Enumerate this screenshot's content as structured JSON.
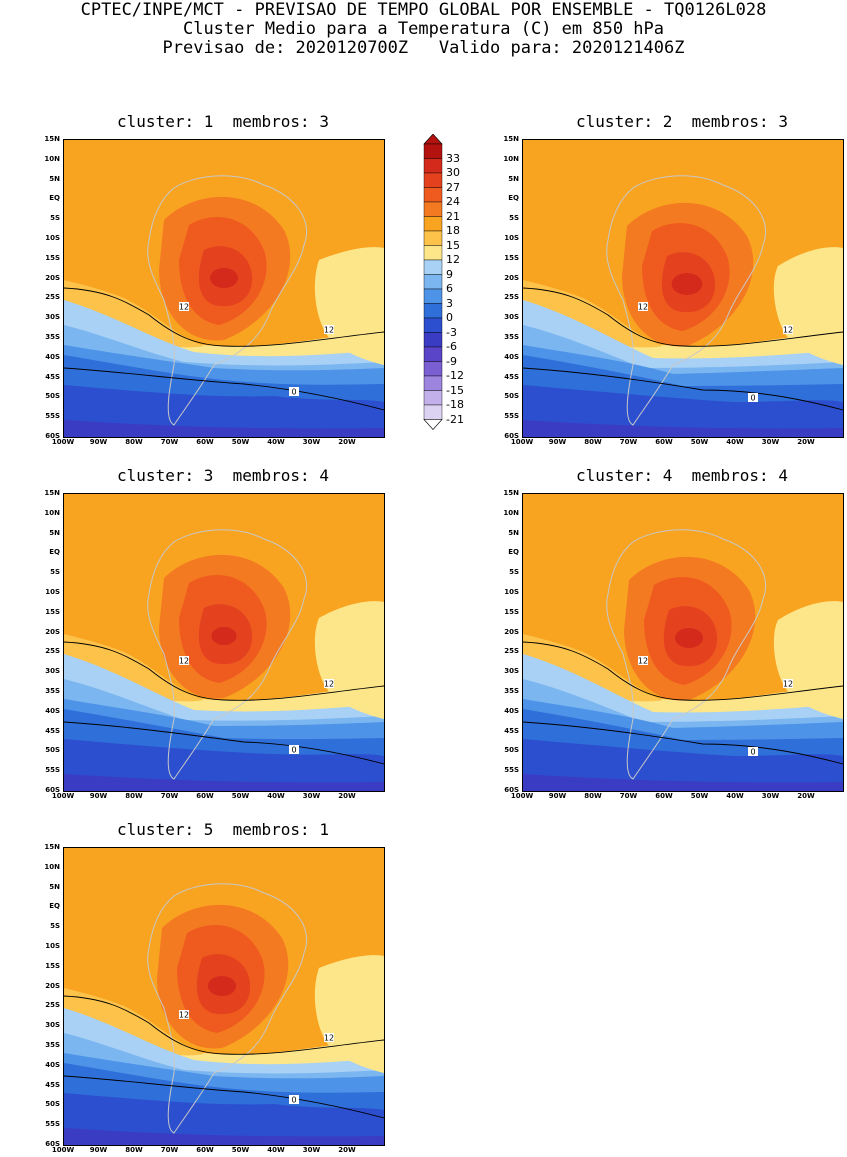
{
  "header": {
    "line1": "CPTEC/INPE/MCT - PREVISAO DE TEMPO GLOBAL POR ENSEMBLE - TQ0126L028",
    "line2": "Cluster Medio para a Temperatura (C) em 850 hPa",
    "line3": "Previsao de: 2020120700Z   Valido para: 2020121406Z"
  },
  "panels": [
    {
      "title": "cluster: 1  membros: 3"
    },
    {
      "title": "cluster: 2  membros: 3"
    },
    {
      "title": "cluster: 3  membros: 4"
    },
    {
      "title": "cluster: 4  membros: 4"
    },
    {
      "title": "cluster: 5  membros: 1"
    }
  ],
  "axes": {
    "lat_labels": [
      "15N",
      "10N",
      "5N",
      "EQ",
      "5S",
      "10S",
      "15S",
      "20S",
      "25S",
      "30S",
      "35S",
      "40S",
      "45S",
      "50S",
      "55S",
      "60S"
    ],
    "lon_labels": [
      "100W",
      "90W",
      "80W",
      "70W",
      "60W",
      "50W",
      "40W",
      "30W",
      "20W"
    ]
  },
  "colorbar": {
    "labels": [
      "33",
      "30",
      "27",
      "24",
      "21",
      "18",
      "15",
      "12",
      "9",
      "6",
      "3",
      "0",
      "-3",
      "-6",
      "-9",
      "-12",
      "-15",
      "-18",
      "-21"
    ],
    "colors": [
      "#b3120f",
      "#d42a1c",
      "#e4421f",
      "#ef5b1e",
      "#f47a22",
      "#f9a420",
      "#fcc24a",
      "#fde68a",
      "#a8d1f5",
      "#7bb6f0",
      "#4d93e8",
      "#2f6fd9",
      "#2c4fcf",
      "#3b3cc4",
      "#5a44c8",
      "#7b5ed2",
      "#9d84de",
      "#c2b0ea",
      "#dcd3f3"
    ]
  },
  "contour_labels": {
    "c12": "12",
    "c0": "0"
  }
}
